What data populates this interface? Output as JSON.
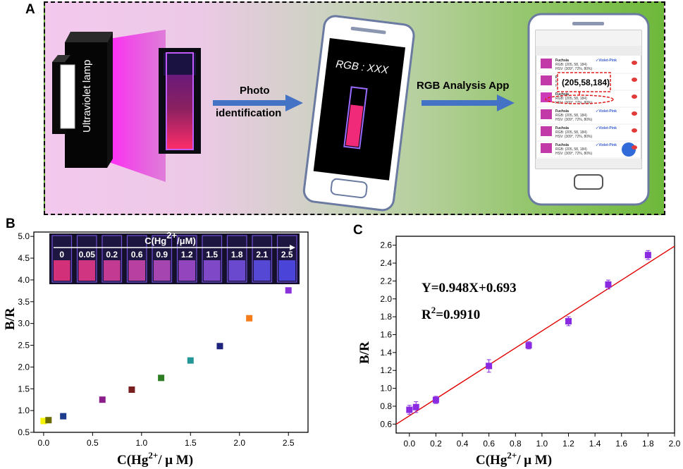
{
  "panel_labels": {
    "a": "A",
    "b": "B",
    "c": "C"
  },
  "panel_a": {
    "lamp_label": "Ultraviolet lamp",
    "arrow1_line1": "Photo",
    "arrow1_line2": "identification",
    "phone1_text": "RGB : XXX",
    "arrow2_label": "RGB Analysis App",
    "callout_value": "(205,58,184)",
    "app_rows": [
      {
        "name": "Fuchsia",
        "tag": "✓Violet-Pink",
        "swatch": "#c23aa8"
      },
      {
        "name": "Fuchsia",
        "tag": "",
        "swatch": "#c23aa8"
      },
      {
        "name": "Fuchsia",
        "tag": "",
        "swatch": "#cd3ab8"
      },
      {
        "name": "Fuchsia",
        "tag": "✓Violet-Pink",
        "swatch": "#c23aa8"
      },
      {
        "name": "Fuchsia",
        "tag": "✓Violet-Pink",
        "swatch": "#c23aa8"
      },
      {
        "name": "Fuchsia",
        "tag": "✓Violet-Pink",
        "swatch": "#c23aa8"
      }
    ],
    "app_rgb_line": "RGB: (205, 58, 184)",
    "app_hsv_line": "HSV: (309°, 72%, 80%)",
    "app_no_match": "no-matched code"
  },
  "chart_data": [
    {
      "type": "scatter",
      "title": "",
      "xlabel": "C(Hg2+/ μ M)",
      "ylabel": "B/R",
      "xlim": [
        -0.1,
        2.7
      ],
      "ylim": [
        0.5,
        5.1
      ],
      "xticks": [
        "0.0",
        "0.5",
        "1.0",
        "1.5",
        "2.0",
        "2.5"
      ],
      "yticks": [
        "0.5",
        "1.0",
        "1.5",
        "2.0",
        "2.5",
        "3.0",
        "3.5",
        "4.0",
        "4.5",
        "5.0"
      ],
      "points": [
        {
          "x": 0,
          "y": 0.76,
          "color": "#f5f500"
        },
        {
          "x": 0.05,
          "y": 0.78,
          "color": "#6b6b00"
        },
        {
          "x": 0.2,
          "y": 0.87,
          "color": "#1e3c8c"
        },
        {
          "x": 0.6,
          "y": 1.25,
          "color": "#8c1e8c"
        },
        {
          "x": 0.9,
          "y": 1.48,
          "color": "#781e1e"
        },
        {
          "x": 1.2,
          "y": 1.75,
          "color": "#2d7d23"
        },
        {
          "x": 1.5,
          "y": 2.15,
          "color": "#259696"
        },
        {
          "x": 1.8,
          "y": 2.48,
          "color": "#1e237d"
        },
        {
          "x": 2.1,
          "y": 3.12,
          "color": "#f57d19"
        },
        {
          "x": 2.5,
          "y": 3.76,
          "color": "#8c32dc"
        }
      ],
      "inset": {
        "title": "C(Hg2+/μM)",
        "labels": [
          "0",
          "0.05",
          "0.2",
          "0.6",
          "0.9",
          "1.2",
          "1.5",
          "1.8",
          "2.1",
          "2.5"
        ],
        "colors": [
          "#d2317a",
          "#cf3581",
          "#c23a92",
          "#b840a0",
          "#a445b0",
          "#9345bd",
          "#7e48c6",
          "#6a49cf",
          "#5548d5",
          "#4a45d8"
        ]
      }
    },
    {
      "type": "scatter",
      "title": "",
      "xlabel": "C(Hg2+/ μ M)",
      "ylabel": "B/R",
      "xlim": [
        -0.1,
        2.0
      ],
      "ylim": [
        0.5,
        2.7
      ],
      "xticks": [
        "0.0",
        "0.2",
        "0.4",
        "0.6",
        "0.8",
        "1.0",
        "1.2",
        "1.4",
        "1.6",
        "1.8",
        "2.0"
      ],
      "yticks": [
        "0.6",
        "0.8",
        "1.0",
        "1.2",
        "1.4",
        "1.6",
        "1.8",
        "2.0",
        "2.2",
        "2.4",
        "2.6"
      ],
      "points": [
        {
          "x": 0,
          "y": 0.76,
          "err": 0.05
        },
        {
          "x": 0.05,
          "y": 0.79,
          "err": 0.06
        },
        {
          "x": 0.2,
          "y": 0.87,
          "err": 0.04
        },
        {
          "x": 0.6,
          "y": 1.25,
          "err": 0.07
        },
        {
          "x": 0.9,
          "y": 1.48,
          "err": 0.04
        },
        {
          "x": 1.2,
          "y": 1.75,
          "err": 0.05
        },
        {
          "x": 1.5,
          "y": 2.16,
          "err": 0.05
        },
        {
          "x": 1.8,
          "y": 2.49,
          "err": 0.05
        }
      ],
      "fit": {
        "slope": 0.948,
        "intercept": 0.693
      },
      "equation": "Y=0.948X+0.693",
      "r2_label": "R",
      "r2_exp": "2",
      "r2_value": "=0.9910",
      "point_color": "#8a2be2",
      "line_color": "#e00000"
    }
  ]
}
